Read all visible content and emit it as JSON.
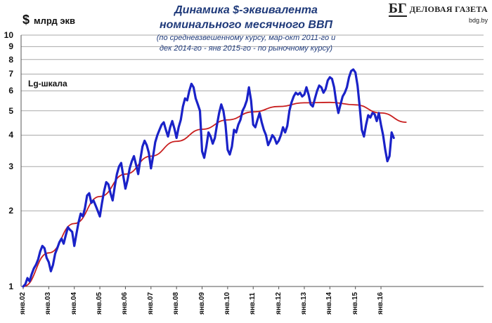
{
  "header": {
    "title_line1": "Динамика $-эквивалента",
    "title_line2": "номинального месячного ВВП",
    "subtitle_line1": "(по средневзвешенному курсу, мар-окт 2011-го и",
    "subtitle_line2": "дек 2014-го - янв 2015-го - по рыночному курсу)",
    "unit_symbol": "$",
    "unit_text": "млрд экв",
    "scale_note": "Lg-шкала"
  },
  "logo": {
    "mark": "БГ",
    "name": "ДЕЛОВАЯ ГАЗЕТА",
    "url": "bdg.by"
  },
  "colors": {
    "series_main": "#1a22c8",
    "trend": "#c81e1e",
    "grid": "#a9a9a9",
    "title": "#1f3a7a"
  },
  "chart_data": {
    "type": "line",
    "title": "Динамика $-эквивалента номинального месячного ВВП",
    "ylabel": "$ млрд экв",
    "yscale": "log",
    "ylim": [
      1,
      10
    ],
    "yticks": [
      "1",
      "2",
      "3",
      "4",
      "5",
      "6",
      "7",
      "8",
      "9",
      "10"
    ],
    "grid": "horizontal",
    "xticks": [
      "янв.02",
      "янв.03",
      "янв.04",
      "янв.05",
      "янв.06",
      "янв.07",
      "янв.08",
      "янв.09",
      "янв.10",
      "янв.11",
      "янв.12",
      "янв.13",
      "янв.14",
      "янв.15",
      "янв.16"
    ],
    "x_start": "янв.02",
    "x_step_months": 1,
    "series": [
      {
        "style": "thick-blue",
        "values": [
          1.0,
          1.02,
          1.08,
          1.05,
          1.12,
          1.18,
          1.22,
          1.28,
          1.38,
          1.45,
          1.42,
          1.3,
          1.25,
          1.15,
          1.22,
          1.35,
          1.42,
          1.5,
          1.55,
          1.48,
          1.6,
          1.72,
          1.68,
          1.65,
          1.45,
          1.62,
          1.8,
          1.95,
          1.9,
          2.05,
          2.3,
          2.35,
          2.15,
          2.2,
          2.1,
          2.0,
          1.9,
          2.15,
          2.4,
          2.6,
          2.55,
          2.35,
          2.2,
          2.5,
          2.8,
          3.0,
          3.1,
          2.75,
          2.45,
          2.65,
          2.95,
          3.15,
          3.3,
          3.05,
          2.8,
          3.2,
          3.6,
          3.8,
          3.65,
          3.4,
          2.95,
          3.3,
          3.75,
          4.0,
          4.2,
          4.4,
          4.5,
          4.2,
          3.95,
          4.3,
          4.55,
          4.25,
          3.9,
          4.3,
          4.6,
          5.2,
          5.6,
          5.5,
          6.0,
          6.4,
          6.2,
          5.6,
          5.3,
          5.0,
          3.45,
          3.25,
          3.6,
          4.1,
          3.95,
          3.7,
          3.9,
          4.4,
          4.9,
          5.3,
          5.0,
          4.4,
          3.5,
          3.35,
          3.6,
          4.2,
          4.1,
          4.4,
          4.6,
          5.0,
          5.2,
          5.5,
          6.2,
          5.5,
          4.4,
          4.3,
          4.6,
          4.9,
          4.5,
          4.2,
          4.0,
          3.65,
          3.8,
          4.0,
          3.9,
          3.7,
          3.8,
          4.0,
          4.3,
          4.1,
          4.35,
          5.0,
          5.4,
          5.7,
          5.9,
          5.8,
          5.9,
          5.7,
          5.8,
          6.2,
          5.8,
          5.3,
          5.2,
          5.6,
          6.0,
          6.3,
          6.2,
          5.9,
          6.1,
          6.6,
          6.8,
          6.7,
          6.2,
          5.4,
          4.9,
          5.3,
          5.7,
          5.9,
          6.2,
          6.8,
          7.2,
          7.3,
          7.1,
          6.3,
          5.2,
          4.2,
          3.95,
          4.4,
          4.8,
          4.7,
          4.9,
          4.85,
          4.55,
          4.9,
          4.4,
          4.0,
          3.5,
          3.15,
          3.3,
          4.1,
          3.9
        ]
      },
      {
        "style": "thin-red-trend",
        "values": [
          1.0,
          1.36,
          1.78,
          2.28,
          2.8,
          3.3,
          3.78,
          4.22,
          4.6,
          4.95,
          5.2,
          5.38,
          5.4,
          5.28,
          4.9,
          4.5
        ]
      }
    ]
  }
}
